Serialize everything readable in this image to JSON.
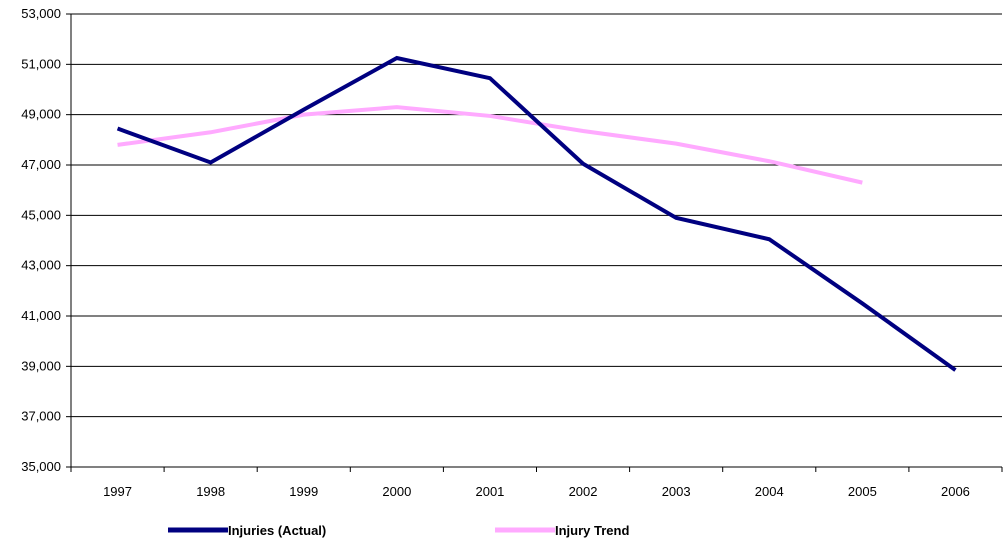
{
  "chart_data": {
    "type": "line",
    "title": "",
    "xlabel": "",
    "ylabel": "",
    "categories": [
      "1997",
      "1998",
      "1999",
      "2000",
      "2001",
      "2002",
      "2003",
      "2004",
      "2005",
      "2006"
    ],
    "ylim": [
      35000,
      53000
    ],
    "y_ticks": [
      35000,
      37000,
      39000,
      41000,
      43000,
      45000,
      47000,
      49000,
      51000,
      53000
    ],
    "y_tick_labels": [
      "35,000",
      "37,000",
      "39,000",
      "41,000",
      "43,000",
      "45,000",
      "47,000",
      "49,000",
      "51,000",
      "53,000"
    ],
    "grid": "horizontal",
    "legend_position": "bottom",
    "series": [
      {
        "name": "Injuries (Actual)",
        "color": "#000080",
        "values": [
          48450,
          47100,
          49200,
          51250,
          50450,
          47050,
          44900,
          44050,
          41500,
          38850
        ]
      },
      {
        "name": "Injury Trend",
        "color": "#FFAAFF",
        "values": [
          47800,
          48300,
          49000,
          49300,
          48950,
          48350,
          47850,
          47150,
          46300,
          null
        ]
      }
    ]
  }
}
